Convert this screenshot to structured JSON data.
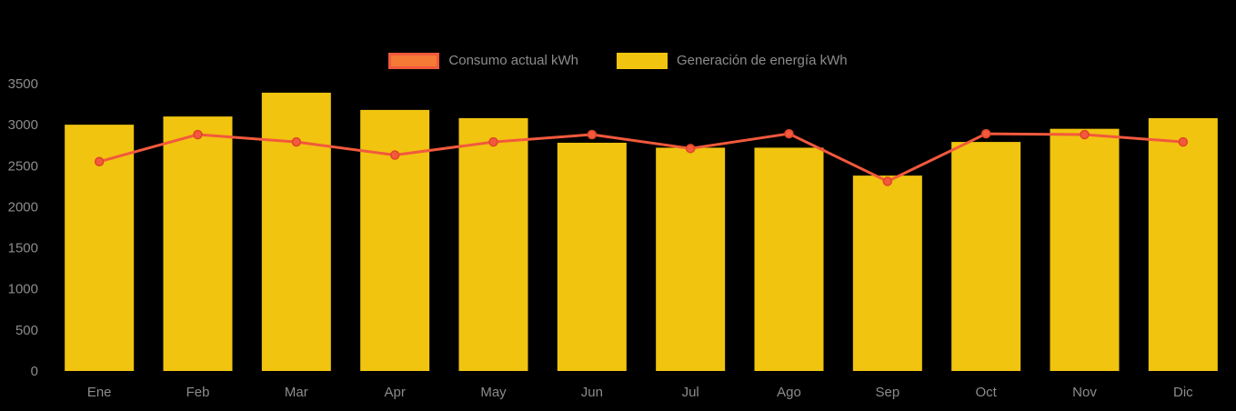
{
  "legend": {
    "consumo_label": "Consumo actual kWh",
    "generacion_label": "Generación de energía kWh"
  },
  "colors": {
    "bar": "#F1C40F",
    "line": "#F2593D",
    "marker_fill": "#F2593D",
    "marker_stroke": "#E04526",
    "legend_line_fill": "#F47A35",
    "background": "#000000",
    "axis_text": "#8C8C8C"
  },
  "chart_data": {
    "type": "bar",
    "note": "combined bar + line chart",
    "title": "",
    "xlabel": "",
    "ylabel": "",
    "categories": [
      "Ene",
      "Feb",
      "Mar",
      "Apr",
      "May",
      "Jun",
      "Jul",
      "Ago",
      "Sep",
      "Oct",
      "Nov",
      "Dic"
    ],
    "series": [
      {
        "name": "Consumo actual kWh",
        "type": "line",
        "color": "#F2593D",
        "values": [
          2550,
          2880,
          2790,
          2630,
          2790,
          2880,
          2710,
          2890,
          2310,
          2890,
          2880,
          2790
        ]
      },
      {
        "name": "Generación de energía kWh",
        "type": "bar",
        "color": "#F1C40F",
        "values": [
          3000,
          3100,
          3390,
          3180,
          3080,
          2780,
          2720,
          2720,
          2380,
          2790,
          2950,
          3080
        ]
      }
    ],
    "ylim": [
      0,
      3500
    ],
    "yticks": [
      0,
      500,
      1000,
      1500,
      2000,
      2500,
      3000,
      3500
    ],
    "grid": false,
    "legend_position": "top"
  }
}
